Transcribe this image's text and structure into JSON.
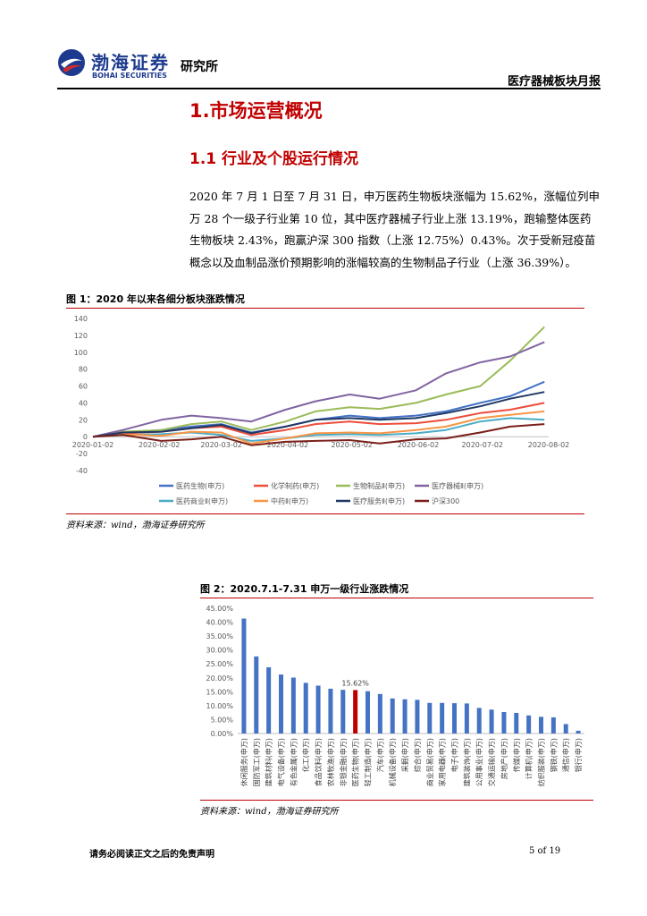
{
  "header": {
    "logo_cn": "渤海证券",
    "logo_en": "BOHAI SECURITIES",
    "logo_inst": "研究所",
    "report_name": "医疗器械板块月报",
    "colors": {
      "brand": "#1d3a8f",
      "accent": "#c00000"
    }
  },
  "section": {
    "h1": "1.市场运营概况",
    "h2": "1.1 行业及个股运行情况",
    "paragraph_lines": [
      "2020 年 7 月 1 日至 7 月 31 日，申万医药生物板块涨幅为 15.62%，涨幅位列申",
      "万 28 个一级子行业第 10 位，其中医疗器械子行业上涨 13.19%，跑输整体医药",
      "生物板块 2.43%，跑赢沪深 300 指数（上涨 12.75%）0.43%。次于受新冠疫苗",
      "概念以及血制品涨价预期影响的涨幅较高的生物制品子行业（上涨 36.39%）。"
    ]
  },
  "figure1": {
    "title": "图 1：2020 年以来各细分板块涨跌情况",
    "source": "资料来源：wind，渤海证券研究所"
  },
  "figure2": {
    "title": "图 2：2020.7.1-7.31 申万一级行业涨跌情况",
    "source": "资料来源：wind，渤海证券研究所"
  },
  "footer": {
    "disclaimer": "请务必阅读正文之后的免责声明",
    "page": "5 of 19"
  },
  "chart_data": [
    {
      "type": "line",
      "ylim": [
        -40,
        140
      ],
      "yticks": [
        -40,
        -20,
        0,
        20,
        40,
        60,
        80,
        100,
        120,
        140
      ],
      "xticks": [
        "2020-01-02",
        "2020-02-02",
        "2020-03-02",
        "2020-04-02",
        "2020-05-02",
        "2020-06-02",
        "2020-07-02",
        "2020-08-02"
      ],
      "x": [
        "2020-01-02",
        "2020-01-16",
        "2020-02-03",
        "2020-02-17",
        "2020-03-02",
        "2020-03-16",
        "2020-04-01",
        "2020-04-15",
        "2020-05-01",
        "2020-05-15",
        "2020-06-01",
        "2020-06-15",
        "2020-07-01",
        "2020-07-15",
        "2020-07-31"
      ],
      "legend_position": "bottom",
      "series": [
        {
          "name": "医药生物(申万)",
          "color": "#4472c4",
          "values": [
            0,
            5,
            8,
            12,
            15,
            5,
            12,
            20,
            25,
            22,
            25,
            30,
            40,
            48,
            65
          ]
        },
        {
          "name": "化学制药(申万)",
          "color": "#ed4d3b",
          "values": [
            0,
            4,
            6,
            10,
            12,
            2,
            8,
            15,
            18,
            15,
            16,
            20,
            28,
            32,
            40
          ]
        },
        {
          "name": "生物制品Ⅱ(申万)",
          "color": "#9bbb59",
          "values": [
            0,
            6,
            8,
            15,
            18,
            8,
            18,
            30,
            35,
            33,
            40,
            50,
            60,
            90,
            130
          ]
        },
        {
          "name": "医疗器械Ⅱ(申万)",
          "color": "#8064a2",
          "values": [
            0,
            8,
            20,
            25,
            22,
            18,
            32,
            42,
            50,
            45,
            55,
            75,
            88,
            95,
            112
          ]
        },
        {
          "name": "医药商业Ⅱ(申万)",
          "color": "#4bacc6",
          "values": [
            0,
            2,
            3,
            5,
            2,
            -5,
            -2,
            2,
            3,
            2,
            4,
            8,
            18,
            22,
            20
          ]
        },
        {
          "name": "中药Ⅱ(申万)",
          "color": "#f79646",
          "values": [
            0,
            3,
            1,
            6,
            5,
            -8,
            -2,
            4,
            5,
            4,
            8,
            12,
            22,
            26,
            30
          ]
        },
        {
          "name": "医疗服务Ⅱ(申万)",
          "color": "#1f3864",
          "values": [
            0,
            5,
            6,
            10,
            14,
            4,
            12,
            20,
            22,
            20,
            22,
            28,
            36,
            45,
            53
          ]
        },
        {
          "name": "沪深300",
          "color": "#7a1f1a",
          "values": [
            0,
            2,
            -5,
            -3,
            0,
            -10,
            -6,
            -5,
            -4,
            -8,
            -3,
            -2,
            5,
            12,
            15
          ]
        }
      ]
    },
    {
      "type": "bar",
      "ylim": [
        0,
        45
      ],
      "yticks": [
        "0.00%",
        "5.00%",
        "10.00%",
        "15.00%",
        "20.00%",
        "25.00%",
        "30.00%",
        "35.00%",
        "40.00%",
        "45.00%"
      ],
      "highlight_label": "15.62%",
      "highlight_index": 9,
      "bar_color": "#4472c4",
      "highlight_color": "#c00000",
      "categories": [
        "休闲服务(申万)",
        "国防军工(申万)",
        "建筑材料(申万)",
        "电气设备(申万)",
        "有色金属(申万)",
        "化工(申万)",
        "食品饮料(申万)",
        "农林牧渔(申万)",
        "非银金融(申万)",
        "医药生物(申万)",
        "轻工制造(申万)",
        "汽车(申万)",
        "机械设备(申万)",
        "采掘(申万)",
        "综合(申万)",
        "商业贸易(申万)",
        "家用电器(申万)",
        "电子(申万)",
        "建筑装饰(申万)",
        "公用事业(申万)",
        "交通运输(申万)",
        "房地产(申万)",
        "传媒(申万)",
        "计算机(申万)",
        "纺织服装(申万)",
        "钢铁(申万)",
        "通信(申万)",
        "银行(申万)"
      ],
      "values": [
        41.3,
        27.7,
        23.8,
        21.2,
        20.1,
        18.2,
        17.2,
        16.1,
        15.7,
        15.62,
        15.2,
        14.2,
        12.6,
        12.3,
        12.1,
        11.0,
        11.0,
        10.9,
        10.8,
        9.2,
        8.6,
        7.7,
        7.4,
        6.5,
        6.0,
        5.8,
        3.4,
        1.0
      ]
    }
  ]
}
